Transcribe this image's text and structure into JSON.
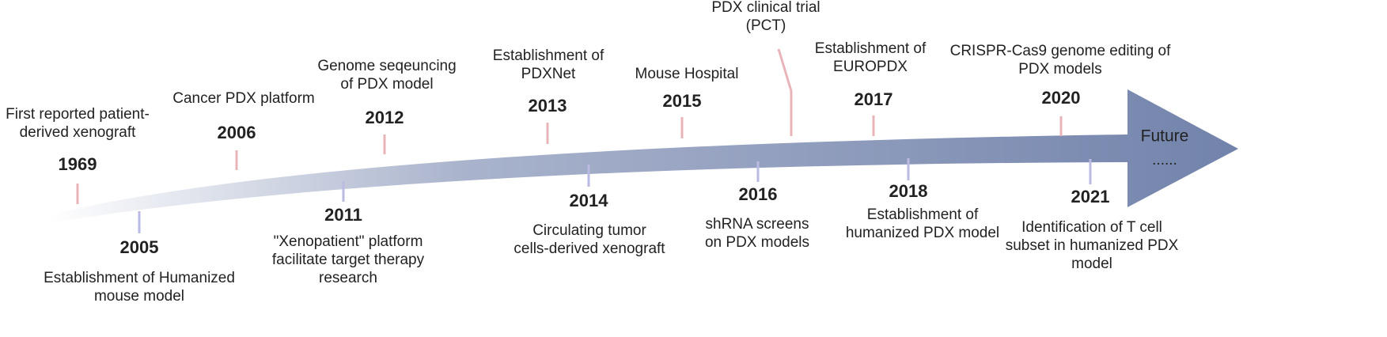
{
  "timeline": {
    "events": [
      {
        "year": 1969,
        "label": [
          "First reported patient-",
          "derived xenograft"
        ]
      },
      {
        "year": 2005,
        "label": [
          "Establishment of Humanized",
          "mouse model"
        ]
      },
      {
        "year": 2006,
        "label": [
          "Cancer PDX platform"
        ]
      },
      {
        "year": 2011,
        "label": [
          "\"Xenopatient\" platform",
          "facilitate target therapy",
          "research"
        ]
      },
      {
        "year": 2012,
        "label": [
          "Genome seqeuncing",
          "of PDX model"
        ]
      },
      {
        "year": 2013,
        "label": [
          "Establishment of",
          "PDXNet"
        ]
      },
      {
        "year": 2014,
        "label": [
          "Circulating tumor",
          "cells-derived xenograft"
        ]
      },
      {
        "year": 2015,
        "label": [
          "Mouse Hospital"
        ]
      },
      {
        "label": [
          "PDX clinical trial",
          "(PCT)"
        ]
      },
      {
        "year": 2016,
        "label": [
          "shRNA screens",
          "on PDX models"
        ]
      },
      {
        "year": 2017,
        "label": [
          "Establishment of",
          "EUROPDX"
        ]
      },
      {
        "year": 2018,
        "label": [
          "Establishment of",
          "humanized PDX model"
        ]
      },
      {
        "year": 2020,
        "label": [
          "CRISPR-Cas9 genome editing of",
          "PDX models"
        ]
      },
      {
        "year": 2021,
        "label": [
          "Identification of T cell",
          "subset in humanized PDX",
          "model"
        ]
      }
    ],
    "end": {
      "label": "Future",
      "dots": "......"
    }
  }
}
